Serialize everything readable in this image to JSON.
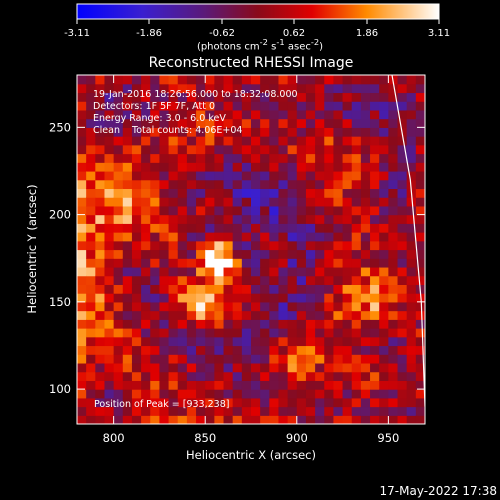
{
  "chart_data": {
    "type": "heatmap",
    "title": "Reconstructed RHESSI Image",
    "xlabel": "Heliocentric X (arcsec)",
    "ylabel": "Heliocentric Y (arcsec)",
    "xlim": [
      780,
      970
    ],
    "ylim": [
      80,
      280
    ],
    "x_ticks": [
      800,
      850,
      900,
      950
    ],
    "y_ticks": [
      100,
      150,
      200,
      250
    ],
    "colorbar": {
      "ticks": [
        "-3.11",
        "-1.86",
        "-0.62",
        "0.62",
        "1.86",
        "3.11"
      ],
      "range": [
        -3.11,
        3.11
      ],
      "units": "(photons cm<sup>-2</sup> s<sup>-1</sup> asec<sup>-2</sup>)"
    },
    "annotations": [
      "19-Jan-2016 18:26:56.000 to 18:32:08.000",
      "Detectors: 1F 5F 7F, Att 0",
      "Energy Range: 3.0 - 6.0 keV",
      "Clean    Total counts: 4.06E+04"
    ],
    "peak_label": "Position of Peak = [933,238]",
    "peak": [
      933,
      238
    ],
    "central_source": [
      857,
      174
    ],
    "limb_points": [
      [
        952,
        280
      ],
      [
        962,
        220
      ],
      [
        968,
        150
      ],
      [
        970,
        90
      ]
    ]
  },
  "timestamp": "17-May-2022 17:38"
}
